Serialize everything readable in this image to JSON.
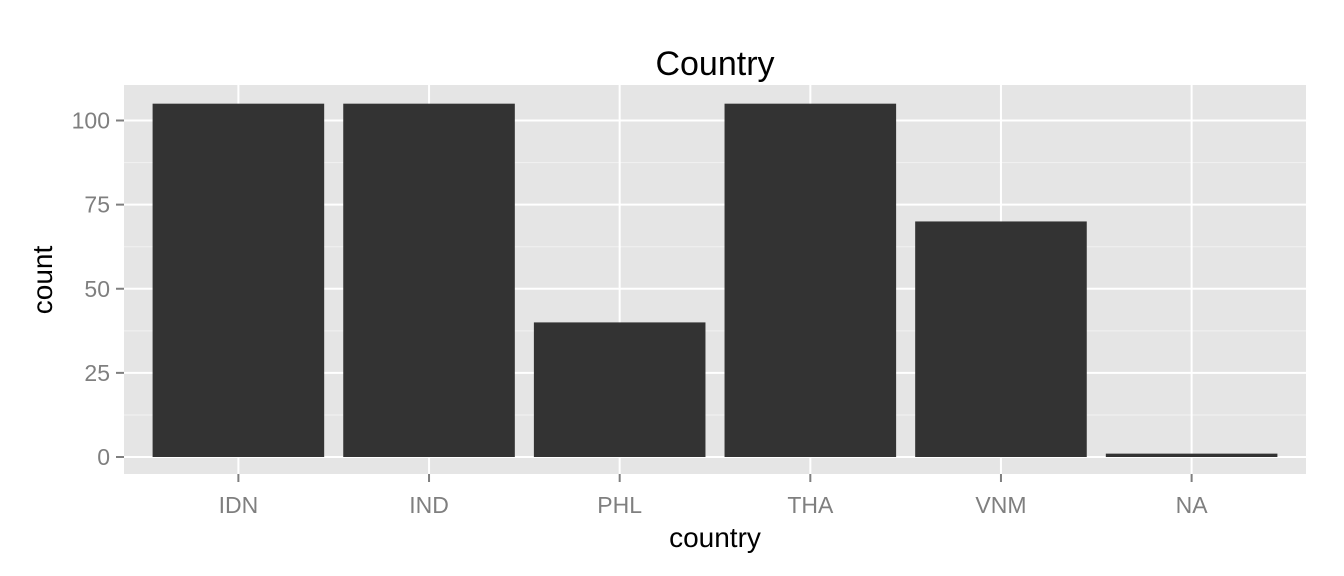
{
  "chart_data": {
    "type": "bar",
    "title": "Country",
    "xlabel": "country",
    "ylabel": "count",
    "categories": [
      "IDN",
      "IND",
      "PHL",
      "THA",
      "VNM",
      "NA"
    ],
    "values": [
      105,
      105,
      40,
      105,
      70,
      1
    ],
    "ylim": [
      0,
      110
    ],
    "yticks": [
      0,
      25,
      50,
      75,
      100
    ],
    "grid": true,
    "bar_color": "#333333",
    "panel_color": "#e5e5e5",
    "gridline_color": "#ffffff"
  }
}
